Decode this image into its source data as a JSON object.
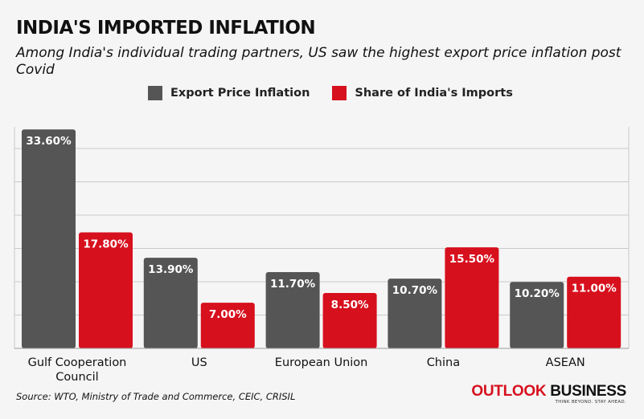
{
  "header": {
    "title": "INDIA'S IMPORTED INFLATION",
    "subtitle": "Among India's individual trading partners, US saw the highest export price inflation post Covid"
  },
  "colors": {
    "export": "#555555",
    "imports": "#d7101e",
    "grid": "#c9c9c9",
    "background": "#f5f5f5"
  },
  "chart_data": {
    "type": "bar",
    "title": "INDIA'S IMPORTED INFLATION",
    "categories": [
      "Gulf Cooperation Council",
      "US",
      "European Union",
      "China",
      "ASEAN"
    ],
    "category_lines": [
      [
        "Gulf Cooperation",
        "Council"
      ],
      [
        "US"
      ],
      [
        "European Union"
      ],
      [
        "China"
      ],
      [
        "ASEAN"
      ]
    ],
    "series": [
      {
        "name": "Export Price Inflation",
        "values": [
          33.6,
          13.9,
          11.7,
          10.7,
          10.2
        ],
        "labels": [
          "33.60%",
          "13.90%",
          "11.70%",
          "10.70%",
          "10.20%"
        ],
        "color": "#555555"
      },
      {
        "name": "Share of India's Imports",
        "values": [
          17.8,
          7.0,
          8.5,
          15.5,
          11.0
        ],
        "labels": [
          "17.80%",
          "7.00%",
          "8.50%",
          "15.50%",
          "11.00%"
        ],
        "color": "#d7101e"
      }
    ],
    "ylim": [
      0,
      34
    ],
    "grid": true,
    "legend": "top"
  },
  "footer": {
    "source": "Source: WTO, Ministry of Trade and Commerce, CEIC, CRISIL",
    "logo_word1": "OUTLOOK",
    "logo_word2": "BUSINESS",
    "logo_tagline": "THINK BEYOND. STAY AHEAD."
  }
}
